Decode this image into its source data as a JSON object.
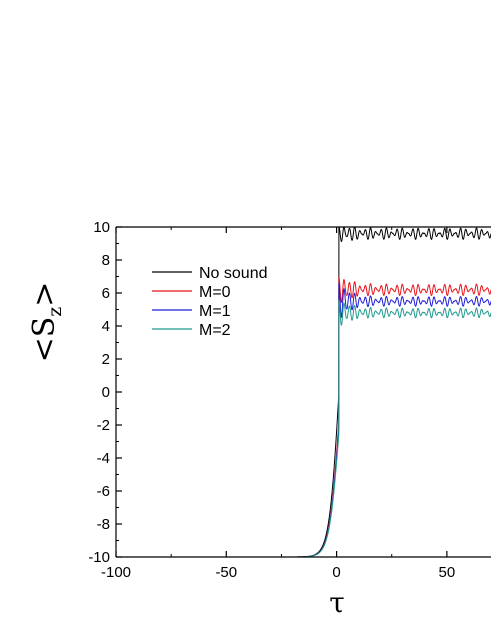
{
  "chart_data": {
    "type": "line",
    "xlabel": "τ",
    "ylabel": {
      "main": "<S",
      "sub": "z",
      "close": ">"
    },
    "xlim": [
      -100,
      70
    ],
    "ylim": [
      -10,
      10
    ],
    "xticks": [
      "-100",
      "-50",
      "0",
      "50"
    ],
    "xtick_values": [
      -100,
      -50,
      0,
      50
    ],
    "yticks": [
      "-10",
      "-8",
      "-6",
      "-4",
      "-2",
      "0",
      "2",
      "4",
      "6",
      "8",
      "10"
    ],
    "ytick_values": [
      -10,
      -8,
      -6,
      -4,
      -2,
      0,
      2,
      4,
      6,
      8,
      10
    ],
    "legend_position": "top-left",
    "grid": false,
    "series": [
      {
        "name": "No sound",
        "color": "#000000",
        "final_value": 9.6,
        "oscillation_amplitude": 0.35,
        "first_peak": 10.0,
        "period": 2.4
      },
      {
        "name": "M=0",
        "color": "#e8141b",
        "final_value": 6.2,
        "oscillation_amplitude": 0.35,
        "first_peak": 7.0,
        "period": 2.4
      },
      {
        "name": "M=1",
        "color": "#1c1cd8",
        "final_value": 5.5,
        "oscillation_amplitude": 0.3,
        "first_peak": 6.6,
        "period": 2.4
      },
      {
        "name": "M=2",
        "color": "#1f9a8c",
        "final_value": 4.8,
        "oscillation_amplitude": 0.3,
        "first_peak": 5.6,
        "period": 2.4
      }
    ]
  }
}
